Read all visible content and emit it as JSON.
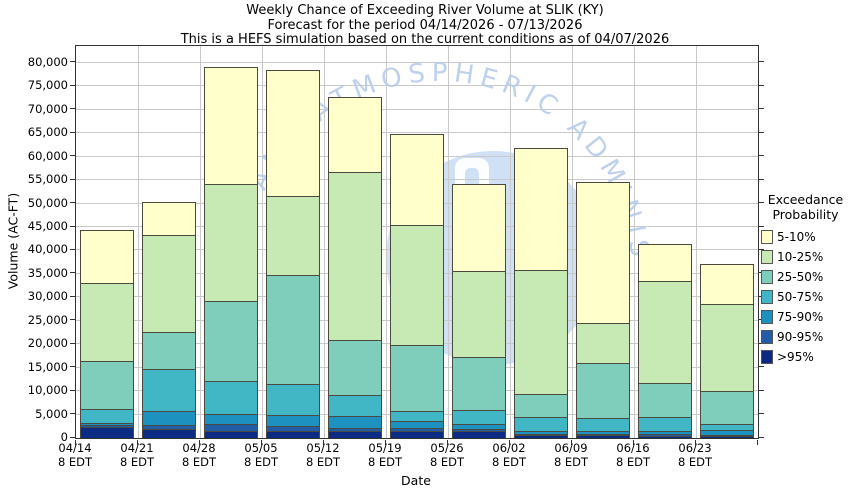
{
  "title": {
    "line1": "Weekly Chance of Exceeding River Volume at SLIK (KY)",
    "line2": "Forecast for the period 04/14/2026 - 07/13/2026",
    "line3": "This is a HEFS simulation based on the current conditions as of 04/07/2026"
  },
  "axes": {
    "y_label": "Volume (AC-FT)",
    "x_label": "Date",
    "y_tick_labels": [
      "0",
      "5,000",
      "10,000",
      "15,000",
      "20,000",
      "25,000",
      "30,000",
      "35,000",
      "40,000",
      "45,000",
      "50,000",
      "55,000",
      "60,000",
      "65,000",
      "70,000",
      "75,000",
      "80,000"
    ],
    "x_tick_labels": [
      {
        "date": "04/14",
        "time": "8 EDT"
      },
      {
        "date": "04/21",
        "time": "8 EDT"
      },
      {
        "date": "04/28",
        "time": "8 EDT"
      },
      {
        "date": "05/05",
        "time": "8 EDT"
      },
      {
        "date": "05/12",
        "time": "8 EDT"
      },
      {
        "date": "05/19",
        "time": "8 EDT"
      },
      {
        "date": "05/26",
        "time": "8 EDT"
      },
      {
        "date": "06/02",
        "time": "8 EDT"
      },
      {
        "date": "06/09",
        "time": "8 EDT"
      },
      {
        "date": "06/16",
        "time": "8 EDT"
      },
      {
        "date": "06/23",
        "time": "8 EDT"
      }
    ]
  },
  "legend": {
    "title_line1": "Exceedance",
    "title_line2": "Probability",
    "entries": [
      {
        "label": "5-10%",
        "color": "#ffffcc"
      },
      {
        "label": "10-25%",
        "color": "#c7e9b4"
      },
      {
        "label": "25-50%",
        "color": "#7fcdbb"
      },
      {
        "label": "50-75%",
        "color": "#41b6c4"
      },
      {
        "label": "75-90%",
        "color": "#1d91c0"
      },
      {
        "label": "90-95%",
        "color": "#225ea8"
      },
      {
        "label": ">95%",
        "color": "#0c2c84"
      }
    ]
  },
  "watermark": {
    "arc_text": "AND ATMOSPHERIC ADMINISTR",
    "circle_color": "#c5daf2",
    "text_color": "#b7cdeb"
  },
  "chart_data": {
    "type": "stacked-bar",
    "title": "Weekly Chance of Exceeding River Volume at SLIK (KY)",
    "xlabel": "Date",
    "ylabel": "Volume (AC-FT)",
    "ylim": [
      0,
      83600
    ],
    "y_tick_step": 5000,
    "grid": true,
    "legend_position": "right",
    "legend_title": "Exceedance Probability",
    "categories": [
      "04/14",
      "04/21",
      "04/28",
      "05/05",
      "05/12",
      "05/19",
      "05/26",
      "06/02",
      "06/09",
      "06/16",
      "06/23"
    ],
    "series": [
      {
        "name": ">95%",
        "color": "#0c2c84",
        "values": [
          2400,
          1900,
          1500,
          1500,
          1400,
          1500,
          1400,
          600,
          600,
          500,
          400
        ]
      },
      {
        "name": "90-95%",
        "color": "#225ea8",
        "values": [
          400,
          800,
          1400,
          1000,
          800,
          600,
          500,
          300,
          300,
          300,
          300
        ]
      },
      {
        "name": "75-90%",
        "color": "#1d91c0",
        "values": [
          300,
          3100,
          2200,
          2500,
          2500,
          1500,
          1000,
          600,
          600,
          700,
          1100
        ]
      },
      {
        "name": "50-75%",
        "color": "#41b6c4",
        "values": [
          3000,
          9000,
          7100,
          6500,
          4400,
          2200,
          3000,
          3000,
          2800,
          3000,
          1100
        ]
      },
      {
        "name": "25-50%",
        "color": "#7fcdbb",
        "values": [
          10400,
          7700,
          17100,
          23200,
          11900,
          14000,
          11400,
          4800,
          11700,
          7300,
          7100
        ]
      },
      {
        "name": "10-25%",
        "color": "#c7e9b4",
        "values": [
          16500,
          20700,
          24800,
          16900,
          35800,
          25600,
          18300,
          26600,
          8500,
          21700,
          18500
        ]
      },
      {
        "name": "5-10%",
        "color": "#ffffcc",
        "values": [
          11400,
          7200,
          25000,
          26800,
          16000,
          19500,
          18500,
          26000,
          30000,
          7800,
          8600
        ]
      }
    ],
    "bar_totals": [
      44400,
      50400,
      79100,
      78400,
      72800,
      64900,
      54100,
      61900,
      54500,
      41300,
      37100
    ]
  }
}
